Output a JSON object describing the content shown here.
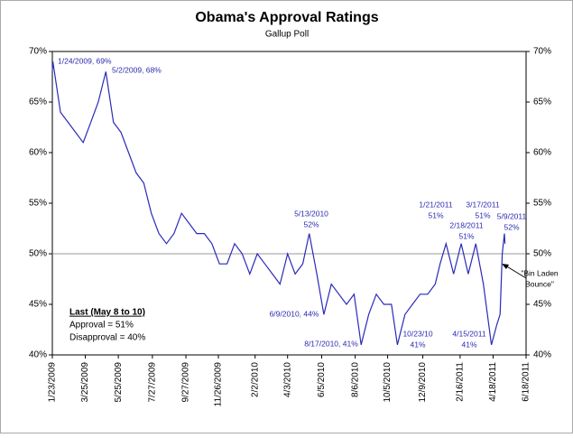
{
  "chart_data": {
    "type": "line",
    "title": "Obama's Approval Ratings",
    "subtitle": "Gallup Poll",
    "xlim": [
      "1/23/2009",
      "6/18/2011"
    ],
    "xticks": [
      "1/23/2009",
      "3/25/2009",
      "5/25/2009",
      "7/27/2009",
      "9/27/2009",
      "11/26/2009",
      "2/2/2010",
      "4/3/2010",
      "6/5/2010",
      "8/6/2010",
      "10/5/2010",
      "12/9/2010",
      "2/16/2011",
      "4/18/2011",
      "6/18/2011"
    ],
    "ylim": [
      40,
      70
    ],
    "yticks": [
      {
        "value": 40,
        "label": "40%"
      },
      {
        "value": 45,
        "label": "45%"
      },
      {
        "value": 50,
        "label": "50%"
      },
      {
        "value": 55,
        "label": "55%"
      },
      {
        "value": 60,
        "label": "60%"
      },
      {
        "value": 65,
        "label": "65%"
      },
      {
        "value": 70,
        "label": "70%"
      }
    ],
    "reference_line": 50,
    "series": [
      {
        "name": "Approval",
        "color": "#2a2ab8",
        "x": [
          "1/23/2009",
          "1/24/2009",
          "2/7/2009",
          "2/21/2009",
          "3/7/2009",
          "3/21/2009",
          "4/4/2009",
          "4/18/2009",
          "5/2/2009",
          "5/16/2009",
          "5/30/2009",
          "6/13/2009",
          "6/27/2009",
          "7/11/2009",
          "7/25/2009",
          "8/8/2009",
          "8/22/2009",
          "9/5/2009",
          "9/19/2009",
          "10/3/2009",
          "10/17/2009",
          "10/31/2009",
          "11/14/2009",
          "11/28/2009",
          "12/12/2009",
          "12/26/2009",
          "1/9/2010",
          "1/23/2010",
          "2/6/2010",
          "2/20/2010",
          "3/6/2010",
          "3/20/2010",
          "4/3/2010",
          "4/17/2010",
          "5/1/2010",
          "5/13/2010",
          "5/27/2010",
          "6/9/2010",
          "6/23/2010",
          "7/7/2010",
          "7/21/2010",
          "8/4/2010",
          "8/17/2010",
          "8/31/2010",
          "9/14/2010",
          "9/28/2010",
          "10/12/2010",
          "10/23/2010",
          "11/6/2010",
          "11/20/2010",
          "12/4/2010",
          "12/18/2010",
          "1/1/2011",
          "1/10/2011",
          "1/21/2011",
          "2/4/2011",
          "2/18/2011",
          "3/3/2011",
          "3/17/2011",
          "3/31/2011",
          "4/15/2011",
          "4/25/2011",
          "5/1/2011",
          "5/5/2011",
          "5/9/2011",
          "5/10/2011"
        ],
        "values": [
          68,
          69,
          64,
          63,
          62,
          61,
          63,
          65,
          68,
          63,
          62,
          60,
          58,
          57,
          54,
          52,
          51,
          52,
          54,
          53,
          52,
          52,
          51,
          49,
          49,
          51,
          50,
          48,
          50,
          49,
          48,
          47,
          50,
          48,
          49,
          52,
          48,
          44,
          47,
          46,
          45,
          46,
          41,
          44,
          46,
          45,
          45,
          41,
          44,
          45,
          46,
          46,
          47,
          49,
          51,
          48,
          51,
          48,
          51,
          47,
          41,
          43,
          44,
          50,
          52,
          51
        ]
      }
    ],
    "annotations": [
      [
        "1/24/2009, 69%"
      ],
      [
        "5/2/2009, 68%"
      ],
      [
        "5/13/2010",
        "52%"
      ],
      [
        "6/9/2010, 44%"
      ],
      [
        "8/17/2010, 41%"
      ],
      [
        "10/23/10",
        "41%"
      ],
      [
        "1/21/2011",
        "51%"
      ],
      [
        "2/18/2011",
        "51%"
      ],
      [
        "3/17/2011",
        "51%"
      ],
      [
        "4/15/2011",
        "41%"
      ],
      [
        "5/9/2011",
        "52%"
      ],
      [
        "\"Bin Laden",
        "Bounce\""
      ]
    ],
    "summary": [
      "Last (May 8 to 10)",
      "Approval = 51%",
      "Disapproval = 40%"
    ]
  }
}
